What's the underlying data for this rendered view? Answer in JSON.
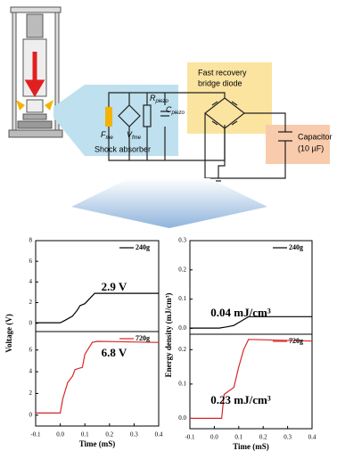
{
  "diagram": {
    "bridge_label": [
      "Fast recovery",
      "bridge diode"
    ],
    "resistor": {
      "label": "R",
      "sub": "piezo"
    },
    "capacitance": {
      "label": "C",
      "sub": "piezo"
    },
    "force": {
      "label": "F",
      "sub": "me"
    },
    "voltage": {
      "label": "V",
      "sub": "fme"
    },
    "absorber_label": "Shock absorber",
    "capacitor_label": [
      "Capacitor",
      "(10 µF)"
    ]
  },
  "chart_data": [
    {
      "type": "line",
      "ylabel": "Voltage (V)",
      "annotation": "2.9 V",
      "x": [
        -0.1,
        0.0,
        0.02,
        0.05,
        0.07,
        0.08,
        0.1,
        0.12,
        0.14,
        0.4
      ],
      "series": [
        {
          "name": "240g",
          "color": "#000000",
          "values": [
            0.05,
            0.05,
            0.3,
            0.7,
            1.3,
            1.7,
            1.9,
            2.4,
            2.9,
            2.9
          ]
        }
      ],
      "xlim": [
        -0.1,
        0.4
      ],
      "ylim": [
        -0.8,
        8
      ],
      "yticks": [
        0,
        2,
        4,
        6,
        8
      ]
    },
    {
      "type": "line",
      "xlabel": "Time (mS)",
      "annotation": "6.8 V",
      "x": [
        -0.1,
        0.0,
        0.01,
        0.03,
        0.05,
        0.06,
        0.09,
        0.1,
        0.13,
        0.15,
        0.4
      ],
      "series": [
        {
          "name": "720g",
          "color": "#d62728",
          "values": [
            0.2,
            0.2,
            1.5,
            3.0,
            3.6,
            4.2,
            4.4,
            5.6,
            6.7,
            6.8,
            6.7
          ]
        }
      ],
      "xlim": [
        -0.1,
        0.4
      ],
      "ylim": [
        -1,
        7.7
      ],
      "yticks": [
        0,
        2,
        4,
        6
      ],
      "xticks": [
        -0.1,
        {
          "value": 0,
          "label": "0.0"
        },
        0.1,
        0.2,
        0.3,
        0.4
      ]
    },
    {
      "type": "line",
      "ylabel": "Energy density (mJ/cm³)",
      "annotation": "0.04 mJ/cm³",
      "x": [
        -0.1,
        0.02,
        0.05,
        0.08,
        0.1,
        0.12,
        0.14,
        0.4
      ],
      "series": [
        {
          "name": "240g",
          "color": "#000000",
          "values": [
            0.001,
            0.001,
            0.005,
            0.01,
            0.02,
            0.03,
            0.04,
            0.04
          ]
        }
      ],
      "xlim": [
        -0.1,
        0.4
      ],
      "ylim": [
        -0.02,
        0.3
      ],
      "yticks": [
        {
          "value": 0,
          "label": "0.0"
        },
        0.1,
        0.2,
        0.3
      ]
    },
    {
      "type": "line",
      "xlabel": "Time (mS)",
      "annotation": "0.23 mJ/cm³",
      "x": [
        -0.1,
        0.03,
        0.04,
        0.06,
        0.08,
        0.1,
        0.12,
        0.14,
        0.4
      ],
      "series": [
        {
          "name": "720g",
          "color": "#d62728",
          "values": [
            0,
            0,
            0.07,
            0.08,
            0.09,
            0.15,
            0.2,
            0.23,
            0.225
          ]
        }
      ],
      "xlim": [
        -0.1,
        0.4
      ],
      "ylim": [
        -0.03,
        0.245
      ],
      "yticks": [
        {
          "value": 0,
          "label": "0.0"
        },
        0.1,
        0.2
      ],
      "xticks": [
        -0.1,
        {
          "value": 0,
          "label": "0.0"
        },
        0.1,
        0.2,
        0.3,
        0.4
      ]
    }
  ]
}
